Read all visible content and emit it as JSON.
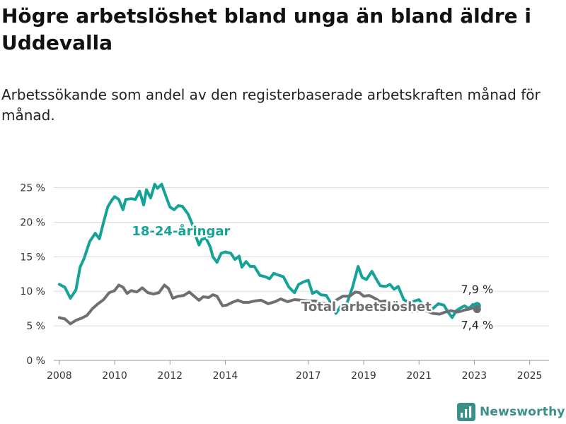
{
  "title": "Högre arbetslöshet bland unga än bland äldre i Uddevalla",
  "subtitle": "Arbetssökande som andel av den registerbaserade arbetskraften månad för månad.",
  "brand": {
    "name": "Newsworthy",
    "icon": "newsworthy-logo-icon",
    "color": "#3a8f88"
  },
  "chart_data": {
    "type": "line",
    "xlim": [
      2007.8,
      2025.7
    ],
    "ylim": [
      0,
      27
    ],
    "x_ticks": [
      2008,
      2010,
      2012,
      2014,
      2017,
      2019,
      2021,
      2023,
      2025
    ],
    "x_tick_labels": [
      "2008",
      "2010",
      "2012",
      "2014",
      "2017",
      "2019",
      "2021",
      "2023",
      "2025"
    ],
    "y_ticks": [
      0,
      5,
      10,
      15,
      20,
      25
    ],
    "y_tick_labels": [
      "0 %",
      "5 %",
      "10 %",
      "15 %",
      "20 %",
      "25 %"
    ],
    "grid": "horizontal",
    "series": [
      {
        "name": "18-24-åringar",
        "color": "#16a397",
        "label_year": 2012.4,
        "label_value": 18.8,
        "end_label": "7,9 %",
        "end_value": 7.9,
        "points": [
          [
            2008.0,
            11.0
          ],
          [
            2008.2,
            10.6
          ],
          [
            2008.4,
            9.0
          ],
          [
            2008.6,
            10.2
          ],
          [
            2008.75,
            13.5
          ],
          [
            2008.9,
            14.8
          ],
          [
            2009.1,
            17.2
          ],
          [
            2009.3,
            18.4
          ],
          [
            2009.45,
            17.6
          ],
          [
            2009.6,
            20.0
          ],
          [
            2009.75,
            22.2
          ],
          [
            2009.9,
            23.2
          ],
          [
            2010.0,
            23.7
          ],
          [
            2010.15,
            23.3
          ],
          [
            2010.3,
            21.8
          ],
          [
            2010.4,
            23.3
          ],
          [
            2010.6,
            23.4
          ],
          [
            2010.75,
            23.3
          ],
          [
            2010.9,
            24.5
          ],
          [
            2011.05,
            22.5
          ],
          [
            2011.15,
            24.7
          ],
          [
            2011.3,
            23.5
          ],
          [
            2011.45,
            25.5
          ],
          [
            2011.55,
            24.9
          ],
          [
            2011.7,
            25.5
          ],
          [
            2011.85,
            23.8
          ],
          [
            2012.0,
            22.2
          ],
          [
            2012.15,
            21.8
          ],
          [
            2012.3,
            22.4
          ],
          [
            2012.45,
            22.3
          ],
          [
            2012.65,
            21.2
          ],
          [
            2012.8,
            19.8
          ],
          [
            2012.95,
            17.8
          ],
          [
            2013.05,
            16.7
          ],
          [
            2013.15,
            17.5
          ],
          [
            2013.3,
            17.7
          ],
          [
            2013.45,
            16.5
          ],
          [
            2013.55,
            15.0
          ],
          [
            2013.7,
            14.2
          ],
          [
            2013.85,
            15.5
          ],
          [
            2014.0,
            15.7
          ],
          [
            2014.2,
            15.5
          ],
          [
            2014.35,
            14.6
          ],
          [
            2014.5,
            15.1
          ],
          [
            2014.6,
            13.5
          ],
          [
            2014.75,
            14.3
          ],
          [
            2014.9,
            13.6
          ],
          [
            2015.05,
            13.6
          ],
          [
            2015.25,
            12.3
          ],
          [
            2015.45,
            12.1
          ],
          [
            2015.6,
            11.8
          ],
          [
            2015.75,
            12.6
          ],
          [
            2015.95,
            12.3
          ],
          [
            2016.1,
            12.1
          ],
          [
            2016.3,
            10.6
          ],
          [
            2016.5,
            9.8
          ],
          [
            2016.65,
            11.0
          ],
          [
            2016.85,
            11.4
          ],
          [
            2017.0,
            11.6
          ],
          [
            2017.15,
            9.7
          ],
          [
            2017.3,
            10.0
          ],
          [
            2017.45,
            9.5
          ],
          [
            2017.65,
            9.4
          ],
          [
            2017.8,
            8.4
          ],
          [
            2018.0,
            6.8
          ],
          [
            2018.2,
            8.0
          ],
          [
            2018.4,
            8.3
          ],
          [
            2018.6,
            10.6
          ],
          [
            2018.8,
            13.6
          ],
          [
            2018.95,
            12.0
          ],
          [
            2019.1,
            11.7
          ],
          [
            2019.3,
            12.9
          ],
          [
            2019.45,
            11.8
          ],
          [
            2019.6,
            10.8
          ],
          [
            2019.8,
            10.7
          ],
          [
            2019.95,
            11.0
          ],
          [
            2020.1,
            10.3
          ],
          [
            2020.25,
            10.7
          ],
          [
            2020.45,
            8.8
          ],
          [
            2020.65,
            8.3
          ],
          [
            2020.85,
            8.6
          ],
          [
            2021.0,
            8.8
          ],
          [
            2021.15,
            8.0
          ],
          [
            2021.3,
            7.3
          ],
          [
            2021.5,
            7.5
          ],
          [
            2021.7,
            8.2
          ],
          [
            2021.9,
            8.0
          ],
          [
            2022.05,
            7.0
          ],
          [
            2022.2,
            6.2
          ],
          [
            2022.35,
            7.2
          ],
          [
            2022.5,
            7.6
          ],
          [
            2022.65,
            7.9
          ],
          [
            2022.8,
            7.5
          ],
          [
            2022.95,
            8.1
          ],
          [
            2023.1,
            7.9
          ]
        ]
      },
      {
        "name": "Total arbetslöshet",
        "color": "#6f6f73",
        "label_year": 2019.1,
        "label_value": 7.9,
        "end_label": "7,4 %",
        "end_value": 7.4,
        "points": [
          [
            2008.0,
            6.2
          ],
          [
            2008.2,
            6.0
          ],
          [
            2008.4,
            5.3
          ],
          [
            2008.6,
            5.8
          ],
          [
            2008.8,
            6.1
          ],
          [
            2009.0,
            6.5
          ],
          [
            2009.2,
            7.5
          ],
          [
            2009.4,
            8.2
          ],
          [
            2009.6,
            8.8
          ],
          [
            2009.8,
            9.8
          ],
          [
            2010.0,
            10.1
          ],
          [
            2010.15,
            10.9
          ],
          [
            2010.3,
            10.6
          ],
          [
            2010.45,
            9.7
          ],
          [
            2010.6,
            10.1
          ],
          [
            2010.8,
            9.9
          ],
          [
            2011.0,
            10.5
          ],
          [
            2011.2,
            9.8
          ],
          [
            2011.4,
            9.6
          ],
          [
            2011.6,
            9.8
          ],
          [
            2011.8,
            10.9
          ],
          [
            2011.95,
            10.4
          ],
          [
            2012.1,
            9.0
          ],
          [
            2012.3,
            9.3
          ],
          [
            2012.5,
            9.4
          ],
          [
            2012.7,
            9.9
          ],
          [
            2012.9,
            9.2
          ],
          [
            2013.05,
            8.7
          ],
          [
            2013.2,
            9.2
          ],
          [
            2013.4,
            9.1
          ],
          [
            2013.55,
            9.5
          ],
          [
            2013.7,
            9.3
          ],
          [
            2013.9,
            7.9
          ],
          [
            2014.05,
            8.0
          ],
          [
            2014.25,
            8.4
          ],
          [
            2014.45,
            8.7
          ],
          [
            2014.65,
            8.4
          ],
          [
            2014.85,
            8.4
          ],
          [
            2015.05,
            8.6
          ],
          [
            2015.3,
            8.7
          ],
          [
            2015.55,
            8.2
          ],
          [
            2015.8,
            8.5
          ],
          [
            2016.0,
            8.9
          ],
          [
            2016.25,
            8.5
          ],
          [
            2016.5,
            8.8
          ],
          [
            2016.75,
            8.7
          ],
          [
            2017.0,
            8.6
          ],
          [
            2017.25,
            8.6
          ],
          [
            2017.5,
            8.3
          ],
          [
            2017.75,
            8.2
          ],
          [
            2018.0,
            8.7
          ],
          [
            2018.25,
            9.3
          ],
          [
            2018.5,
            9.3
          ],
          [
            2018.7,
            9.9
          ],
          [
            2018.85,
            9.8
          ],
          [
            2019.0,
            9.3
          ],
          [
            2019.2,
            9.4
          ],
          [
            2019.4,
            9.0
          ],
          [
            2019.6,
            8.5
          ],
          [
            2019.8,
            8.6
          ],
          [
            2020.0,
            8.2
          ],
          [
            2020.25,
            7.7
          ],
          [
            2020.5,
            7.3
          ],
          [
            2020.75,
            7.1
          ],
          [
            2021.0,
            7.2
          ],
          [
            2021.25,
            7.2
          ],
          [
            2021.5,
            6.8
          ],
          [
            2021.75,
            6.7
          ],
          [
            2021.95,
            7.0
          ],
          [
            2022.15,
            7.2
          ],
          [
            2022.35,
            7.0
          ],
          [
            2022.5,
            7.1
          ],
          [
            2022.65,
            7.3
          ],
          [
            2022.8,
            7.4
          ],
          [
            2022.95,
            7.6
          ],
          [
            2023.1,
            7.4
          ]
        ]
      }
    ]
  }
}
